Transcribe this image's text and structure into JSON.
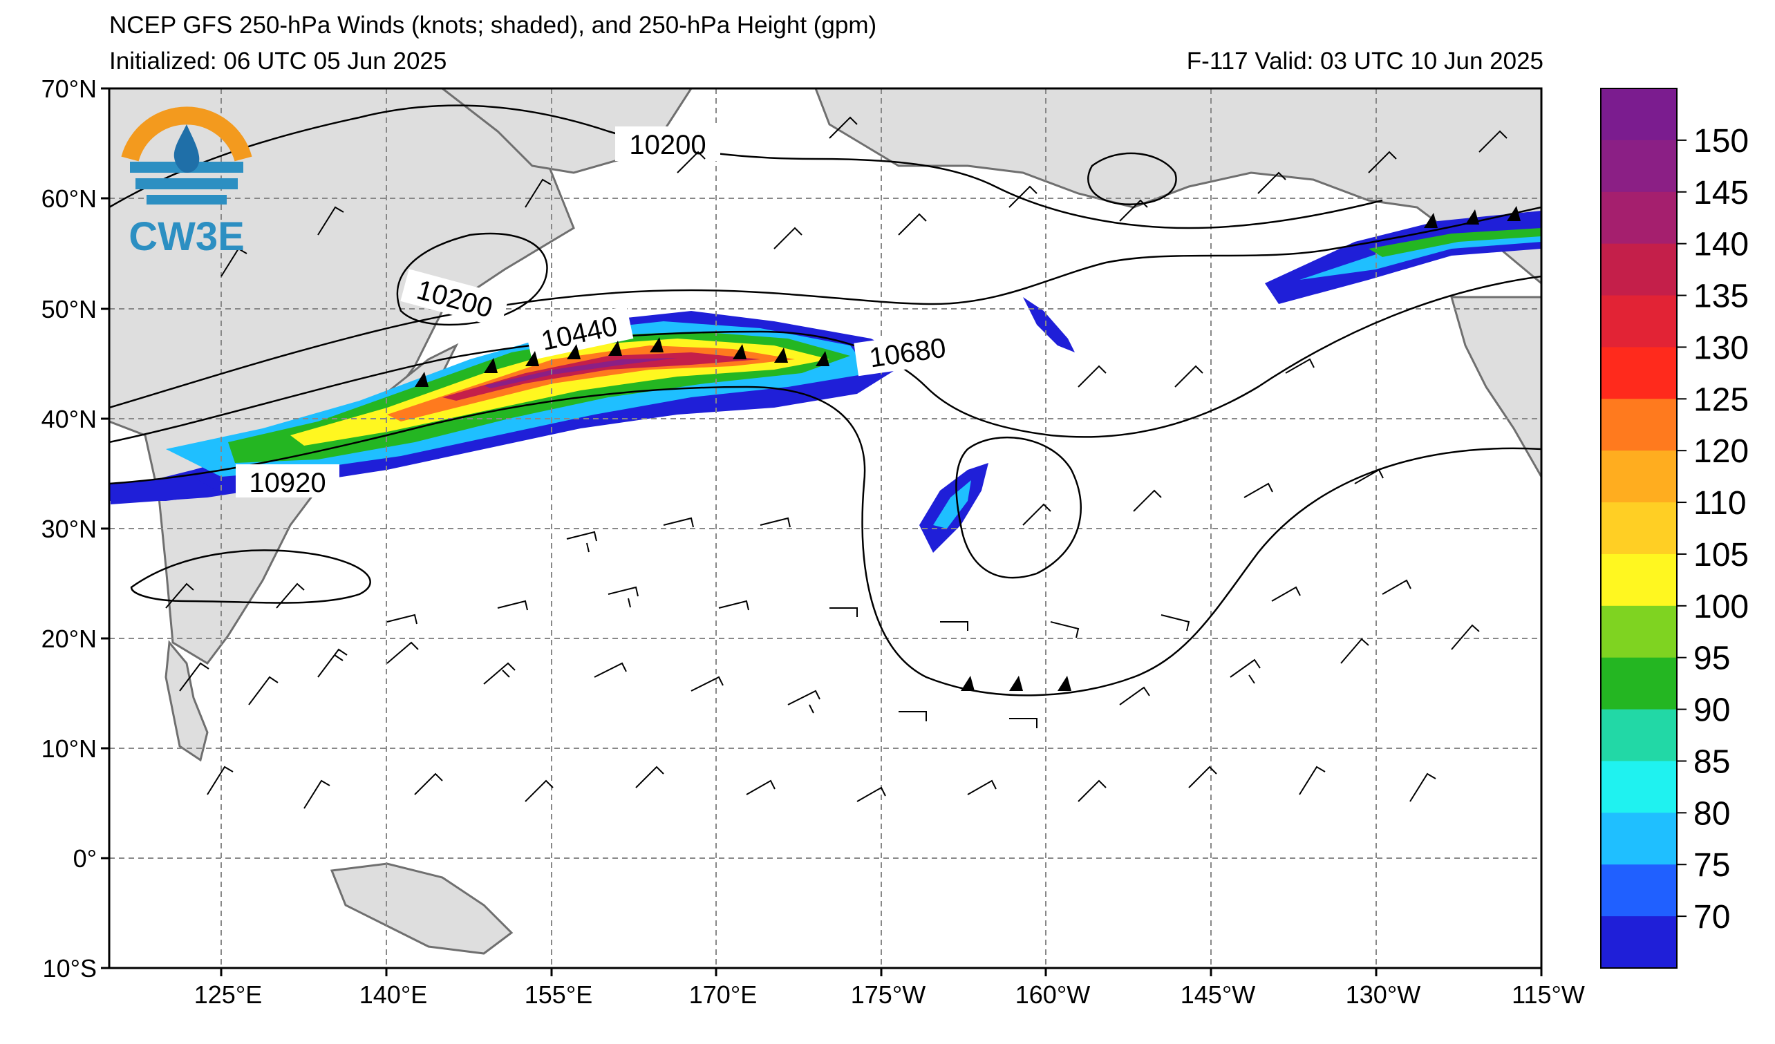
{
  "header": {
    "title": "NCEP GFS 250-hPa Winds (knots; shaded), and 250-hPa Height (gpm)",
    "initialized": "Initialized: 06 UTC 05 Jun 2025",
    "valid": "F-117  Valid: 03 UTC 10 Jun 2025"
  },
  "logo": {
    "text": "CW3E",
    "colors": {
      "sun": "#f39a1e",
      "wave": "#2c8fc2",
      "drop": "#1f6fa8"
    }
  },
  "axes": {
    "lat_labels": [
      "70°N",
      "60°N",
      "50°N",
      "40°N",
      "30°N",
      "20°N",
      "10°N",
      "0°",
      "10°S"
    ],
    "lon_labels": [
      "125°E",
      "140°E",
      "155°E",
      "170°E",
      "175°W",
      "160°W",
      "145°W",
      "130°W",
      "115°W"
    ],
    "lat_range": [
      -10,
      70
    ],
    "lon_range_deg_east": [
      115,
      245
    ]
  },
  "contour_labels": [
    "10200",
    "10200",
    "10440",
    "10680",
    "10920"
  ],
  "colorbar": {
    "ticks": [
      "150",
      "145",
      "140",
      "135",
      "130",
      "125",
      "120",
      "110",
      "105",
      "100",
      "95",
      "90",
      "85",
      "80",
      "75",
      "70"
    ],
    "colors": [
      "#7b1c8f",
      "#8b1f85",
      "#a51f6e",
      "#c41f4a",
      "#e22335",
      "#ff2a1c",
      "#ff7a1e",
      "#ffad1f",
      "#ffcf24",
      "#fff720",
      "#7fd321",
      "#24b622",
      "#22d8a6",
      "#1ff2f0",
      "#1fbfff",
      "#2060ff",
      "#1f1fd8"
    ]
  },
  "chart_data": {
    "type": "heatmap",
    "title": "NCEP GFS 250-hPa Winds (knots; shaded), and 250-hPa Height (gpm)",
    "shaded_variable": "250-hPa wind speed (knots)",
    "contour_variable": "250-hPa height (gpm)",
    "colorbar_range": [
      70,
      150
    ],
    "labeled_contours": [
      10200,
      10200,
      10440,
      10680,
      10920
    ],
    "jet_max_knots_approx": 145,
    "grid": true
  }
}
